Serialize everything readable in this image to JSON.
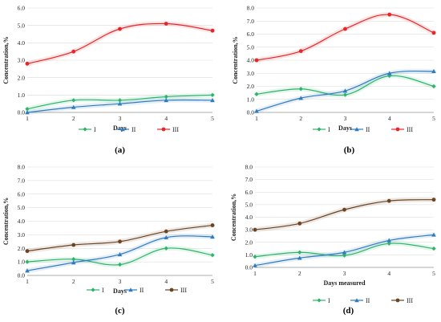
{
  "chart_data": [
    {
      "type": "line",
      "panel_label": "(a)",
      "xlabel": "Days",
      "ylabel": "Concentration,%",
      "x": [
        1,
        2,
        3,
        4,
        5
      ],
      "ylim": [
        0,
        6.0
      ],
      "yticks": [
        "0.0",
        "1.0",
        "2.0",
        "3.0",
        "4.0",
        "5.0",
        "6.0"
      ],
      "grid": true,
      "legend_position": "bottom",
      "series": [
        {
          "name": "I",
          "color": "#2db36b",
          "marker": "diamond",
          "values": [
            0.2,
            0.7,
            0.7,
            0.9,
            1.0
          ]
        },
        {
          "name": "II",
          "color": "#2f7bbf",
          "marker": "triangle",
          "values": [
            0.0,
            0.3,
            0.5,
            0.7,
            0.7
          ]
        },
        {
          "name": "III",
          "color": "#e8262a",
          "marker": "circle",
          "values": [
            2.8,
            3.5,
            4.8,
            5.1,
            4.7
          ]
        }
      ]
    },
    {
      "type": "line",
      "panel_label": "(b)",
      "xlabel": "Days",
      "ylabel": "Concentration,%",
      "x": [
        1,
        2,
        3,
        4,
        5
      ],
      "ylim": [
        0,
        8.0
      ],
      "yticks": [
        "0.0",
        "1.0",
        "2.0",
        "3.0",
        "4.0",
        "5.0",
        "6.0",
        "7.0",
        "8.0"
      ],
      "grid": true,
      "legend_position": "bottom",
      "series": [
        {
          "name": "I",
          "color": "#2db36b",
          "marker": "diamond",
          "values": [
            1.4,
            1.8,
            1.35,
            2.8,
            2.0
          ]
        },
        {
          "name": "II",
          "color": "#2f7bbf",
          "marker": "triangle",
          "values": [
            0.1,
            1.1,
            1.65,
            3.0,
            3.15
          ]
        },
        {
          "name": "III",
          "color": "#e8262a",
          "marker": "circle",
          "values": [
            4.0,
            4.7,
            6.4,
            7.5,
            6.1
          ]
        }
      ]
    },
    {
      "type": "line",
      "panel_label": "(c)",
      "xlabel": "Days",
      "ylabel": "Concentration,%",
      "x": [
        1,
        2,
        3,
        4,
        5
      ],
      "ylim": [
        0,
        8.0
      ],
      "yticks": [
        "0.0",
        "1.0",
        "2.0",
        "3.0",
        "4.0",
        "5.0",
        "6.0",
        "7.0",
        "8.0"
      ],
      "grid": true,
      "legend_position": "bottom",
      "series": [
        {
          "name": "I",
          "color": "#2db36b",
          "marker": "diamond",
          "values": [
            1.0,
            1.2,
            0.8,
            2.0,
            1.5
          ]
        },
        {
          "name": "II",
          "color": "#2f7bbf",
          "marker": "triangle",
          "values": [
            0.35,
            0.95,
            1.55,
            2.8,
            2.85
          ]
        },
        {
          "name": "III",
          "color": "#6b4423",
          "marker": "circle",
          "values": [
            1.8,
            2.25,
            2.5,
            3.25,
            3.7
          ]
        }
      ]
    },
    {
      "type": "line",
      "panel_label": "(d)",
      "xlabel": "Days  measured",
      "ylabel": "Concentration,%",
      "x": [
        1,
        2,
        3,
        4,
        5
      ],
      "ylim": [
        0,
        8.0
      ],
      "yticks": [
        "0.0",
        "1.0",
        "2.0",
        "3.0",
        "4.0",
        "5.0",
        "6.0",
        "7.0",
        "8.0"
      ],
      "grid": true,
      "legend_position": "bottom",
      "series": [
        {
          "name": "I",
          "color": "#2db36b",
          "marker": "diamond",
          "values": [
            0.85,
            1.2,
            0.95,
            1.9,
            1.5
          ]
        },
        {
          "name": "II",
          "color": "#2f7bbf",
          "marker": "triangle",
          "values": [
            0.15,
            0.75,
            1.2,
            2.15,
            2.6
          ]
        },
        {
          "name": "III",
          "color": "#6b4423",
          "marker": "circle",
          "values": [
            3.0,
            3.5,
            4.6,
            5.3,
            5.4
          ]
        }
      ]
    }
  ]
}
